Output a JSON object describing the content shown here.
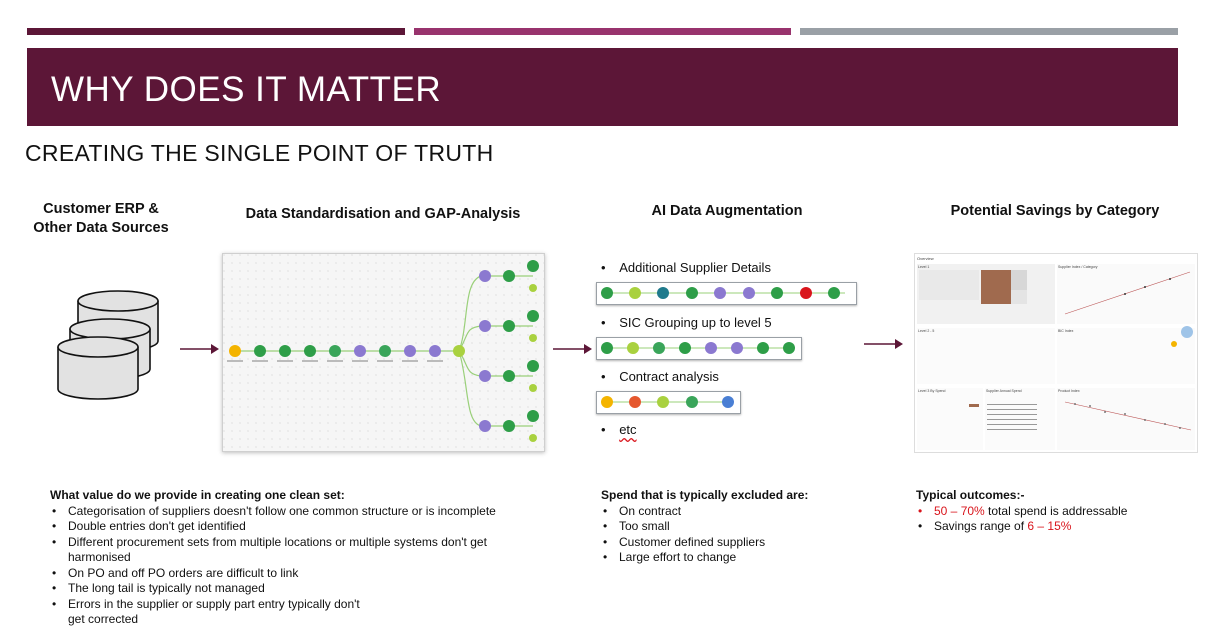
{
  "header": {
    "title": "WHY DOES IT MATTER",
    "subtitle": "CREATING THE SINGLE POINT OF TRUTH",
    "bar_colors": [
      "#5c1637",
      "#98336d",
      "#9aa0a6"
    ]
  },
  "columns": {
    "sources": "Customer ERP & Other Data Sources",
    "standardisation": "Data Standardisation and GAP-Analysis",
    "augmentation": "AI Data Augmentation",
    "savings": "Potential Savings by Category"
  },
  "augmentation_items": {
    "item1": "Additional Supplier Details",
    "item2": "SIC Grouping up to level 5",
    "item3": "Contract analysis",
    "item4": "etc"
  },
  "value_section": {
    "heading": "What value do we provide in creating one clean set:",
    "items": [
      "Categorisation of suppliers doesn't follow one common structure or is incomplete",
      "Double entries don't get identified",
      "Different procurement sets from multiple locations or multiple systems don't get harmonised",
      "On PO and off PO orders are difficult to link",
      "The long tail is typically not managed",
      "Errors in the supplier or supply part entry typically don't get corrected"
    ]
  },
  "excluded_section": {
    "heading": "Spend that is typically excluded are:",
    "items": [
      "On contract",
      "Too small",
      "Customer defined suppliers",
      "Large effort to change"
    ]
  },
  "outcomes_section": {
    "heading": "Typical outcomes:-",
    "item1_highlight": "50 – 70%",
    "item1_rest": " total spend is addressable",
    "item2_prefix": "Savings range of ",
    "item2_highlight": "6 – 15%"
  },
  "dashboard": {
    "title": "Overview",
    "panel1": "Level 1",
    "panel2": "Supplier Index / Category",
    "panel3": "Level 2 - 5",
    "panel4": "BIC Index",
    "panel5": "Level 3 By Spend",
    "panel6": "Supplier Annual Spend",
    "panel7": "Product Index"
  },
  "colors": {
    "banner": "#5c1637",
    "accent_red": "#d9151c",
    "arrow": "#5c1637"
  }
}
